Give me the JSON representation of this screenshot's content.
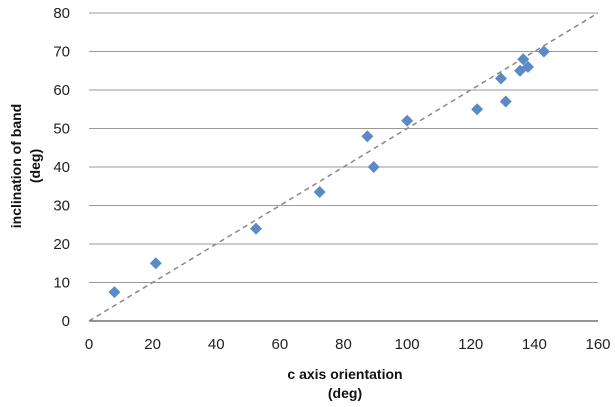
{
  "chart_data": {
    "type": "scatter",
    "xlabel_lines": [
      "c axis orientation",
      "(deg)"
    ],
    "ylabel_lines": [
      "inclination of band",
      "(deg)"
    ],
    "xlim": [
      0,
      160
    ],
    "ylim": [
      0,
      80
    ],
    "x_ticks": [
      0,
      20,
      40,
      60,
      80,
      100,
      120,
      140,
      160
    ],
    "y_ticks": [
      0,
      10,
      20,
      30,
      40,
      50,
      60,
      70,
      80
    ],
    "grid": "horizontal",
    "marker": "diamond",
    "marker_color": "#5b8ac6",
    "reference_line": {
      "style": "dashed",
      "color": "#888888",
      "from": [
        0,
        0
      ],
      "to": [
        160,
        80
      ]
    },
    "series": [
      {
        "points": [
          {
            "x": 8,
            "y": 7.5
          },
          {
            "x": 21,
            "y": 15
          },
          {
            "x": 52.5,
            "y": 24
          },
          {
            "x": 72.5,
            "y": 33.5
          },
          {
            "x": 87.5,
            "y": 48
          },
          {
            "x": 89.5,
            "y": 40
          },
          {
            "x": 100,
            "y": 52
          },
          {
            "x": 122,
            "y": 55
          },
          {
            "x": 129.5,
            "y": 63
          },
          {
            "x": 131,
            "y": 57
          },
          {
            "x": 135.5,
            "y": 65
          },
          {
            "x": 136.5,
            "y": 68
          },
          {
            "x": 138,
            "y": 66
          },
          {
            "x": 143,
            "y": 70
          }
        ]
      }
    ]
  }
}
